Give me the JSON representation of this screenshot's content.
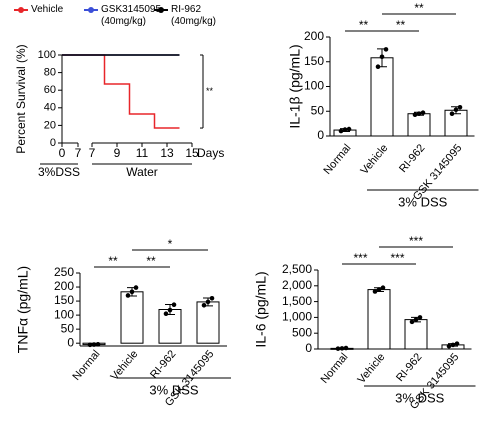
{
  "chart_data": [
    {
      "type": "line",
      "y_label": "Percent Survival (%)",
      "x_label": "Days",
      "ylim": [
        0,
        100
      ],
      "yticks": [
        0,
        20,
        40,
        60,
        80,
        100
      ],
      "x_segments": [
        {
          "xlim": [
            0,
            7
          ],
          "xticks": [
            0,
            7
          ]
        },
        {
          "xlim": [
            7,
            15
          ],
          "xticks": [
            7,
            9,
            11,
            13,
            15
          ]
        }
      ],
      "phases": [
        "3%DSS",
        "Water"
      ],
      "annotation": "**",
      "series": [
        {
          "name": "Vehicle",
          "color": "#e8262a",
          "x": [
            0,
            8,
            8,
            10,
            10,
            12,
            12,
            14
          ],
          "values": [
            100,
            100,
            67,
            67,
            33,
            33,
            17,
            17
          ]
        },
        {
          "name": "GSK3145095 (40mg/kg)",
          "color": "#3b4fd8",
          "x": [
            0,
            14
          ],
          "values": [
            100,
            100
          ]
        },
        {
          "name": "RI-962 (40mg/kg)",
          "color": "#000000",
          "x": [
            0,
            14
          ],
          "values": [
            100,
            100
          ]
        }
      ]
    },
    {
      "type": "bar",
      "y_label": "IL-1β (pg/mL)",
      "group_label": "3% DSS",
      "categories": [
        "Normal",
        "Vehicle",
        "RI-962",
        "GSK 3145095"
      ],
      "values": [
        12,
        158,
        45,
        52
      ],
      "errors": [
        3,
        18,
        3,
        7
      ],
      "points": [
        [
          10,
          13,
          14
        ],
        [
          140,
          160,
          175
        ],
        [
          43,
          45,
          47
        ],
        [
          45,
          53,
          58
        ]
      ],
      "ylim": [
        0,
        200
      ],
      "yticks": [
        0,
        50,
        100,
        150,
        200
      ],
      "significance": [
        {
          "from": 0,
          "to": 1,
          "label": "**"
        },
        {
          "from": 1,
          "to": 2,
          "label": "**"
        },
        {
          "from": 1,
          "to": 3,
          "label": "**"
        }
      ]
    },
    {
      "type": "bar",
      "y_label": "TNFα (pg/mL)",
      "group_label": "3% DSS",
      "categories": [
        "Normal",
        "Vehicle",
        "RI-962",
        "GSK 3145095"
      ],
      "values": [
        -5,
        183,
        120,
        147
      ],
      "errors": [
        2,
        15,
        18,
        14
      ],
      "points": [
        [
          -6,
          -5,
          -4
        ],
        [
          170,
          183,
          198
        ],
        [
          105,
          118,
          137
        ],
        [
          135,
          147,
          160
        ]
      ],
      "ylim": [
        -10,
        250
      ],
      "yticks": [
        0,
        50,
        100,
        150,
        200,
        250
      ],
      "significance": [
        {
          "from": 0,
          "to": 1,
          "label": "**"
        },
        {
          "from": 1,
          "to": 2,
          "label": "**"
        },
        {
          "from": 1,
          "to": 3,
          "label": "*"
        }
      ]
    },
    {
      "type": "bar",
      "y_label": "IL-6 (pg/mL)",
      "group_label": "3% DSS",
      "categories": [
        "Normal",
        "Vehicle",
        "RI-962",
        "GSK 3145095"
      ],
      "values": [
        20,
        1880,
        930,
        130
      ],
      "errors": [
        10,
        60,
        70,
        40
      ],
      "points": [
        [
          10,
          20,
          30
        ],
        [
          1820,
          1880,
          1940
        ],
        [
          860,
          930,
          1000
        ],
        [
          90,
          130,
          170
        ]
      ],
      "ylim": [
        0,
        2500
      ],
      "yticks": [
        0,
        500,
        {
          "value": 1000,
          "label": "1,000"
        },
        {
          "value": 1500,
          "label": "1,500"
        },
        {
          "value": 2000,
          "label": "2,000"
        },
        {
          "value": 2500,
          "label": "2,500"
        }
      ],
      "significance": [
        {
          "from": 0,
          "to": 1,
          "label": "***"
        },
        {
          "from": 1,
          "to": 2,
          "label": "***"
        },
        {
          "from": 1,
          "to": 3,
          "label": "***"
        }
      ]
    }
  ]
}
